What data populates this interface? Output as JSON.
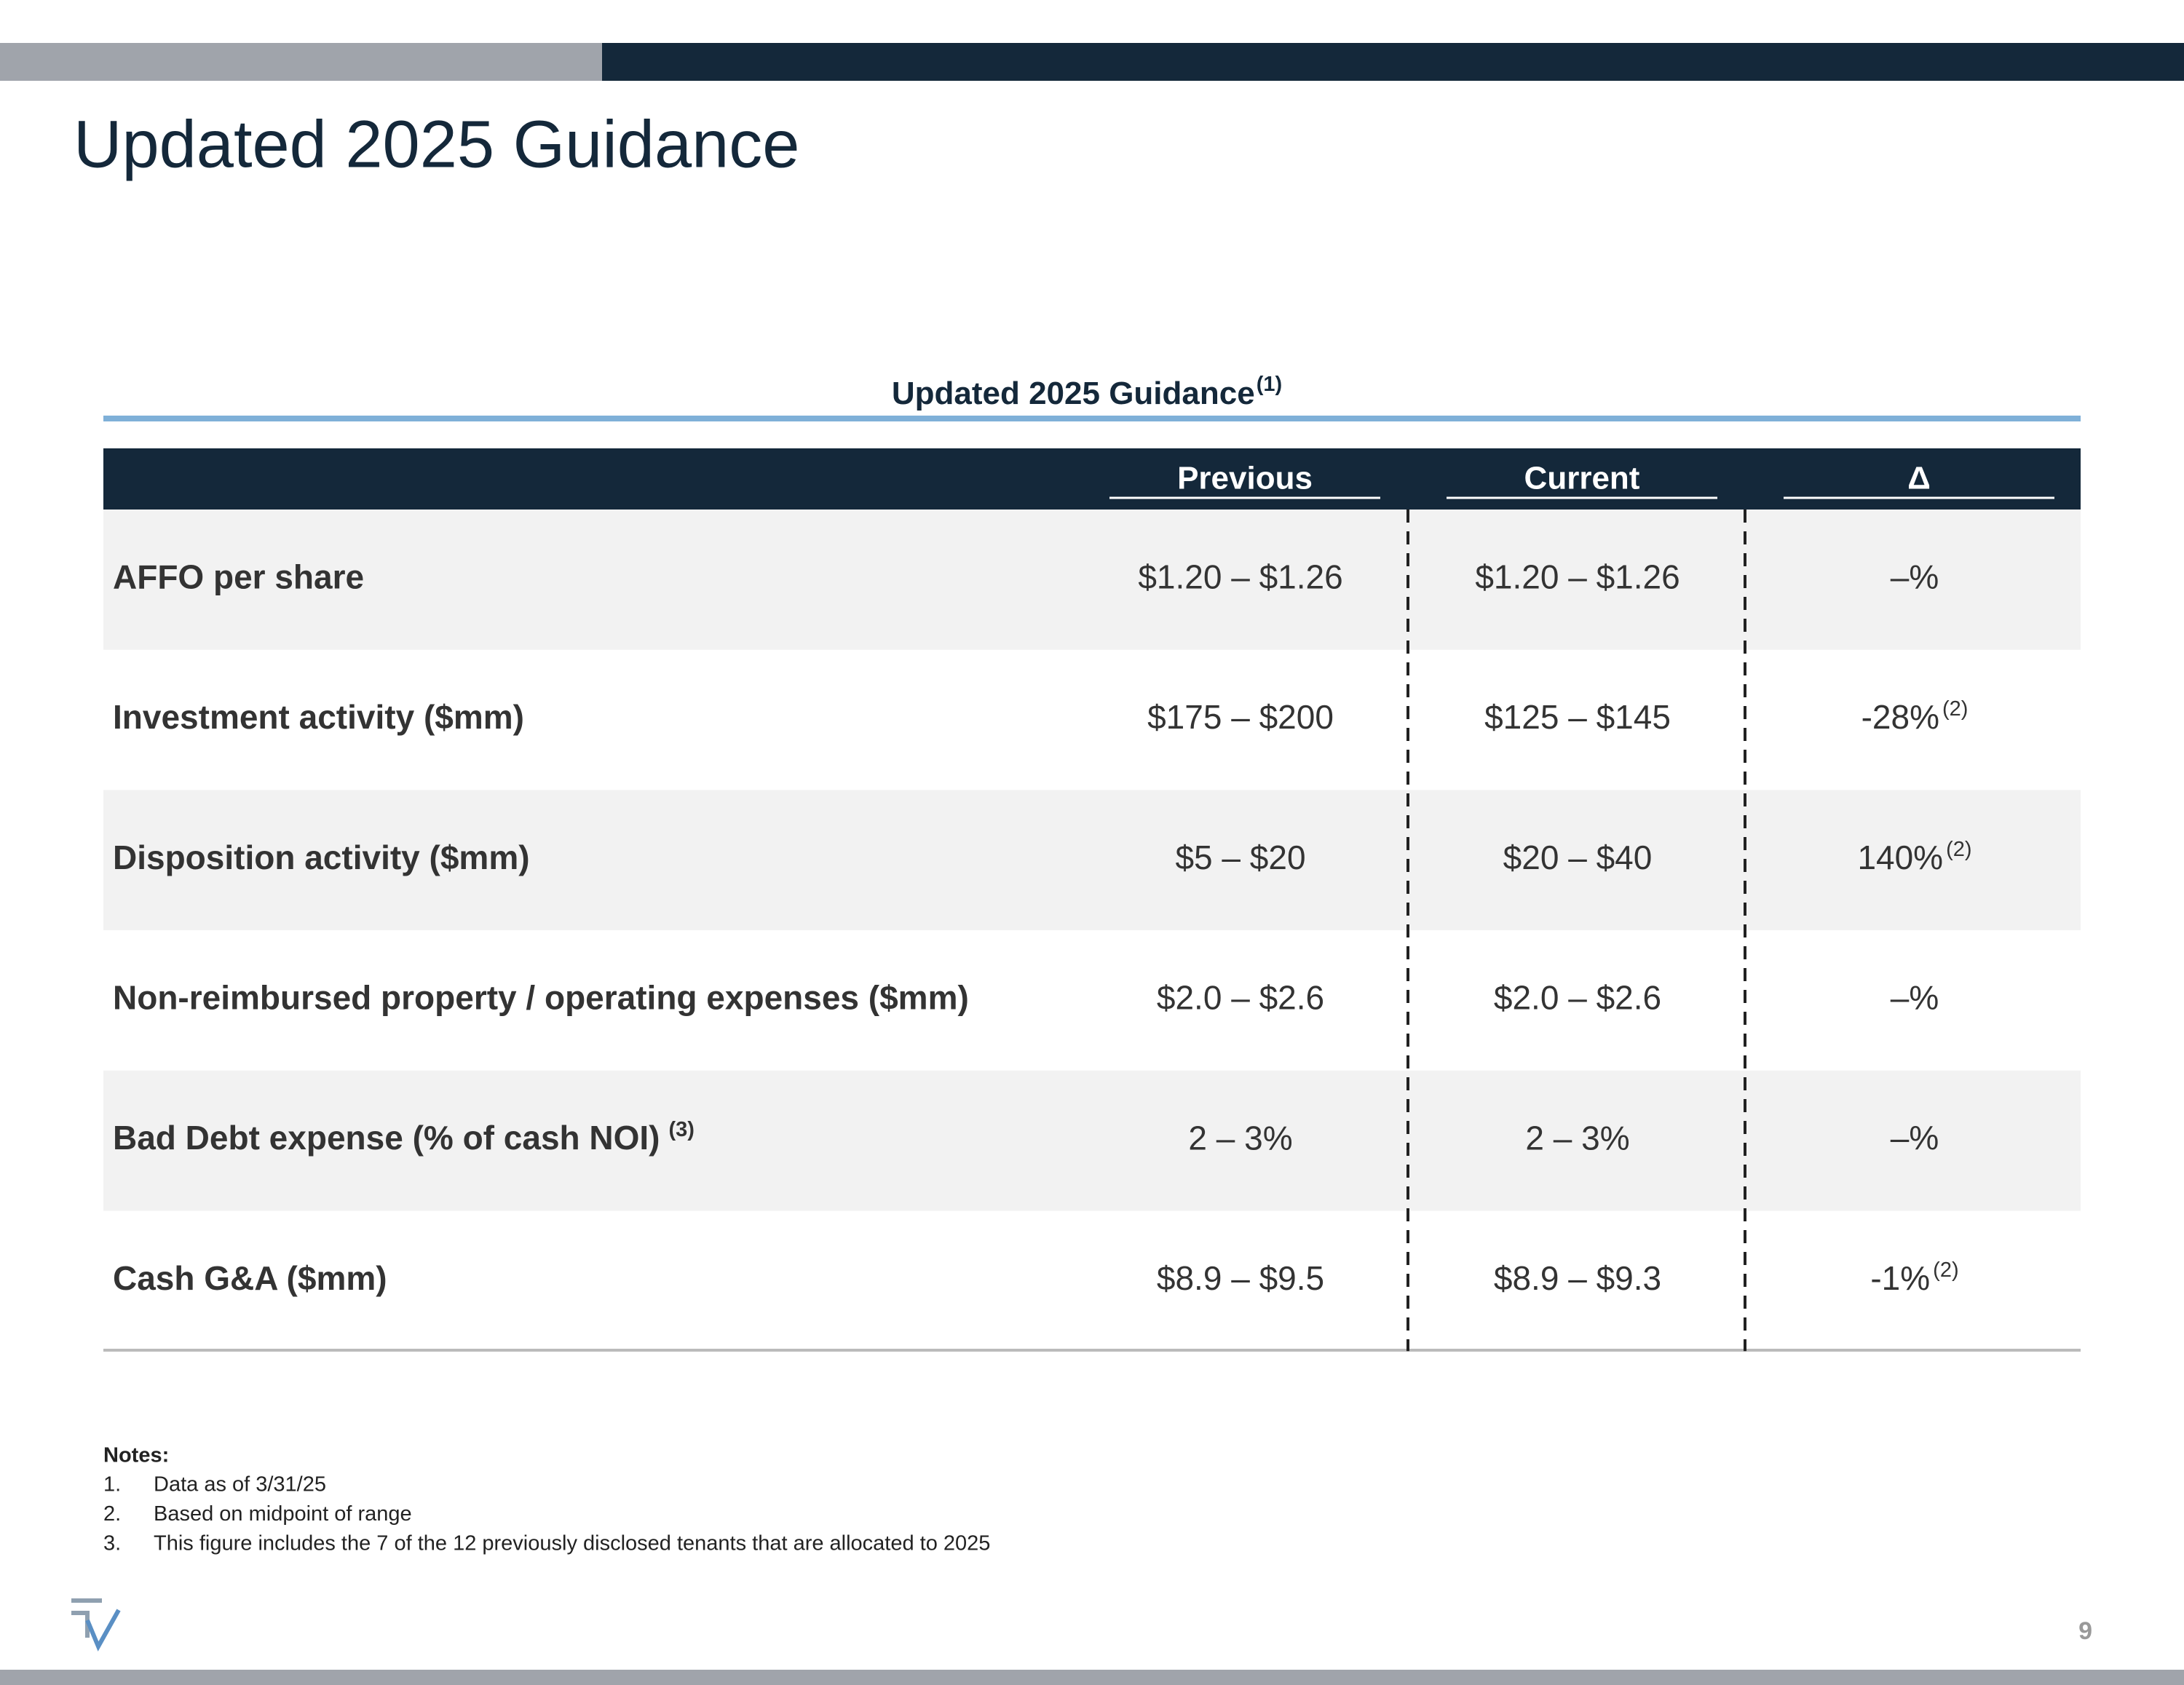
{
  "header": {
    "title": "Updated 2025 Guidance"
  },
  "table": {
    "title": "Updated 2025 Guidance",
    "title_note": "(1)",
    "columns": [
      "Previous",
      "Current",
      "Δ"
    ],
    "rows": [
      {
        "label": "AFFO per share",
        "previous": "$1.20 – $1.26",
        "current": "$1.20 – $1.26",
        "delta": "–%"
      },
      {
        "label": "Investment activity ($mm)",
        "previous": "$175 – $200",
        "current": "$125 – $145",
        "delta": "-28%",
        "delta_note": "(2)"
      },
      {
        "label": "Disposition activity ($mm)",
        "previous": "$5 – $20",
        "current": "$20 – $40",
        "delta": "140%",
        "delta_note": "(2)"
      },
      {
        "label": "Non-reimbursed property / operating expenses ($mm)",
        "previous": "$2.0 – $2.6",
        "current": "$2.0 – $2.6",
        "delta": "–%"
      },
      {
        "label": "Bad Debt expense (% of cash NOI)",
        "label_note": "(3)",
        "previous": "2 – 3%",
        "current": "2 – 3%",
        "delta": "–%"
      },
      {
        "label": "Cash G&A ($mm)",
        "previous": "$8.9 – $9.5",
        "current": "$8.9 – $9.3",
        "delta": "-1%",
        "delta_note": "(2)"
      }
    ]
  },
  "notes": {
    "heading": "Notes:",
    "items": [
      {
        "marker": "1.",
        "text": "Data as of 3/31/25"
      },
      {
        "marker": "2.",
        "text": "Based on midpoint of range"
      },
      {
        "marker": "3.",
        "text": "This figure includes the 7 of the 12 previously disclosed tenants that are allocated to 2025"
      }
    ]
  },
  "footer": {
    "page_number": "9"
  }
}
